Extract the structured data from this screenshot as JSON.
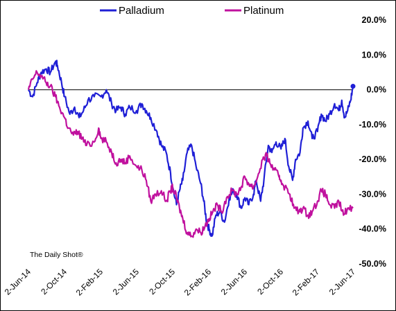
{
  "chart_data": {
    "type": "line",
    "watermark": "The Daily Shot®",
    "x_ticks": [
      "2-Jun-14",
      "2-Oct-14",
      "2-Feb-15",
      "2-Jun-15",
      "2-Oct-15",
      "2-Feb-16",
      "2-Jun-16",
      "2-Oct-16",
      "2-Feb-17",
      "2-Jun-17"
    ],
    "y_ticks": [
      "20.0%",
      "10.0%",
      "0.0%",
      "-10.0%",
      "-20.0%",
      "-30.0%",
      "-40.0%",
      "-50.0%"
    ],
    "ylim": [
      -50,
      20
    ],
    "xlim": [
      "2014-06-02",
      "2017-06-02"
    ],
    "legend_position": "top",
    "zero_line": true,
    "series": [
      {
        "name": "Palladium",
        "color": "#1f1fd6",
        "end_marker": true,
        "points": [
          [
            "2014-06-02",
            0
          ],
          [
            "2014-06-16",
            -2
          ],
          [
            "2014-07-01",
            2
          ],
          [
            "2014-07-15",
            5
          ],
          [
            "2014-08-01",
            6
          ],
          [
            "2014-08-15",
            5
          ],
          [
            "2014-09-01",
            8
          ],
          [
            "2014-09-08",
            7
          ],
          [
            "2014-09-22",
            2
          ],
          [
            "2014-10-02",
            -2
          ],
          [
            "2014-10-20",
            -7
          ],
          [
            "2014-11-05",
            -5
          ],
          [
            "2014-11-20",
            -8
          ],
          [
            "2014-12-05",
            -6
          ],
          [
            "2014-12-20",
            -3
          ],
          [
            "2015-01-10",
            -2
          ],
          [
            "2015-02-02",
            -2
          ],
          [
            "2015-02-20",
            0
          ],
          [
            "2015-03-10",
            -4
          ],
          [
            "2015-03-25",
            -6
          ],
          [
            "2015-04-10",
            -5
          ],
          [
            "2015-04-25",
            -7
          ],
          [
            "2015-05-10",
            -5
          ],
          [
            "2015-06-02",
            -6
          ],
          [
            "2015-06-20",
            -4
          ],
          [
            "2015-07-05",
            -6
          ],
          [
            "2015-07-20",
            -8
          ],
          [
            "2015-08-10",
            -12
          ],
          [
            "2015-08-25",
            -16
          ],
          [
            "2015-09-10",
            -18
          ],
          [
            "2015-09-25",
            -24
          ],
          [
            "2015-10-02",
            -28
          ],
          [
            "2015-10-15",
            -33
          ],
          [
            "2015-10-25",
            -29
          ],
          [
            "2015-11-05",
            -26
          ],
          [
            "2015-11-20",
            -18
          ],
          [
            "2015-12-05",
            -16
          ],
          [
            "2015-12-20",
            -22
          ],
          [
            "2016-01-05",
            -27
          ],
          [
            "2016-01-15",
            -32
          ],
          [
            "2016-01-25",
            -38
          ],
          [
            "2016-02-02",
            -40
          ],
          [
            "2016-02-12",
            -42
          ],
          [
            "2016-02-25",
            -36
          ],
          [
            "2016-03-10",
            -35
          ],
          [
            "2016-03-25",
            -38
          ],
          [
            "2016-04-10",
            -31
          ],
          [
            "2016-04-25",
            -29
          ],
          [
            "2016-05-05",
            -30
          ],
          [
            "2016-05-20",
            -34
          ],
          [
            "2016-06-02",
            -31
          ],
          [
            "2016-06-15",
            -33
          ],
          [
            "2016-07-01",
            -30
          ],
          [
            "2016-07-10",
            -26
          ],
          [
            "2016-07-25",
            -32
          ],
          [
            "2016-08-05",
            -26
          ],
          [
            "2016-08-20",
            -16
          ],
          [
            "2016-09-01",
            -18
          ],
          [
            "2016-09-15",
            -15
          ],
          [
            "2016-10-02",
            -17
          ],
          [
            "2016-10-15",
            -14
          ],
          [
            "2016-10-28",
            -22
          ],
          [
            "2016-11-10",
            -26
          ],
          [
            "2016-11-20",
            -20
          ],
          [
            "2016-12-05",
            -18
          ],
          [
            "2016-12-15",
            -11
          ],
          [
            "2017-01-01",
            -9
          ],
          [
            "2017-01-15",
            -14
          ],
          [
            "2017-02-02",
            -12
          ],
          [
            "2017-02-15",
            -7
          ],
          [
            "2017-03-01",
            -9
          ],
          [
            "2017-03-15",
            -7
          ],
          [
            "2017-04-01",
            -4
          ],
          [
            "2017-04-15",
            -6
          ],
          [
            "2017-04-25",
            -3
          ],
          [
            "2017-05-05",
            -8
          ],
          [
            "2017-05-15",
            -6
          ],
          [
            "2017-05-25",
            -3
          ],
          [
            "2017-06-02",
            1
          ]
        ]
      },
      {
        "name": "Platinum",
        "color": "#c0119e",
        "end_marker": false,
        "points": [
          [
            "2014-06-02",
            0
          ],
          [
            "2014-06-16",
            3
          ],
          [
            "2014-07-01",
            5
          ],
          [
            "2014-07-15",
            4
          ],
          [
            "2014-08-01",
            2
          ],
          [
            "2014-08-15",
            1
          ],
          [
            "2014-09-01",
            -2
          ],
          [
            "2014-09-15",
            -5
          ],
          [
            "2014-10-02",
            -8
          ],
          [
            "2014-10-15",
            -11
          ],
          [
            "2014-11-01",
            -13
          ],
          [
            "2014-11-15",
            -12
          ],
          [
            "2014-12-01",
            -14
          ],
          [
            "2014-12-15",
            -16
          ],
          [
            "2015-01-10",
            -15
          ],
          [
            "2015-01-25",
            -11
          ],
          [
            "2015-02-02",
            -14
          ],
          [
            "2015-02-20",
            -15
          ],
          [
            "2015-03-10",
            -18
          ],
          [
            "2015-03-25",
            -21
          ],
          [
            "2015-04-10",
            -20
          ],
          [
            "2015-04-25",
            -21
          ],
          [
            "2015-05-10",
            -19
          ],
          [
            "2015-06-02",
            -22
          ],
          [
            "2015-06-20",
            -23
          ],
          [
            "2015-07-05",
            -26
          ],
          [
            "2015-07-20",
            -32
          ],
          [
            "2015-08-05",
            -30
          ],
          [
            "2015-08-25",
            -29
          ],
          [
            "2015-09-10",
            -32
          ],
          [
            "2015-09-25",
            -29
          ],
          [
            "2015-10-02",
            -28
          ],
          [
            "2015-10-15",
            -31
          ],
          [
            "2015-10-25",
            -34
          ],
          [
            "2015-11-05",
            -37
          ],
          [
            "2015-11-20",
            -41
          ],
          [
            "2015-12-05",
            -42
          ],
          [
            "2015-12-20",
            -40
          ],
          [
            "2016-01-05",
            -41
          ],
          [
            "2016-01-20",
            -39
          ],
          [
            "2016-02-02",
            -37
          ],
          [
            "2016-02-15",
            -35
          ],
          [
            "2016-03-01",
            -33
          ],
          [
            "2016-03-15",
            -35
          ],
          [
            "2016-04-01",
            -31
          ],
          [
            "2016-04-20",
            -29
          ],
          [
            "2016-05-05",
            -30
          ],
          [
            "2016-05-20",
            -28
          ],
          [
            "2016-06-02",
            -25
          ],
          [
            "2016-06-15",
            -27
          ],
          [
            "2016-07-01",
            -28
          ],
          [
            "2016-07-15",
            -25
          ],
          [
            "2016-08-01",
            -20
          ],
          [
            "2016-08-15",
            -19
          ],
          [
            "2016-08-25",
            -21
          ],
          [
            "2016-09-10",
            -23
          ],
          [
            "2016-09-25",
            -25
          ],
          [
            "2016-10-02",
            -26
          ],
          [
            "2016-10-15",
            -28
          ],
          [
            "2016-11-01",
            -30
          ],
          [
            "2016-11-15",
            -34
          ],
          [
            "2016-12-01",
            -35
          ],
          [
            "2016-12-15",
            -34
          ],
          [
            "2017-01-01",
            -36
          ],
          [
            "2017-01-15",
            -35
          ],
          [
            "2017-02-02",
            -32
          ],
          [
            "2017-02-15",
            -29
          ],
          [
            "2017-03-01",
            -30
          ],
          [
            "2017-03-15",
            -33
          ],
          [
            "2017-04-01",
            -34
          ],
          [
            "2017-04-15",
            -32
          ],
          [
            "2017-05-01",
            -36
          ],
          [
            "2017-05-15",
            -34
          ],
          [
            "2017-06-02",
            -34
          ]
        ]
      }
    ]
  }
}
